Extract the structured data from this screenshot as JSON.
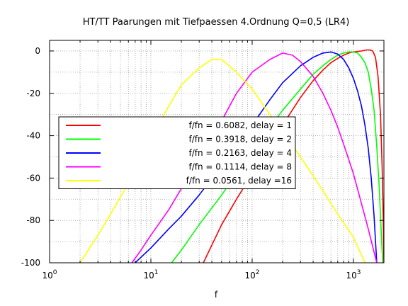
{
  "chart_data": {
    "type": "line",
    "title": "HT/TT Paarungen mit Tiefpaessen 4.Ordnung Q=0,5 (LR4)",
    "xlabel": "f",
    "ylabel": "",
    "x_scale": "log",
    "xlim": [
      1,
      2000
    ],
    "ylim": [
      -100,
      5
    ],
    "grid": true,
    "legend_position": "left-middle",
    "yticks": [
      {
        "value": 0,
        "label": "0"
      },
      {
        "value": -20,
        "label": "-20"
      },
      {
        "value": -40,
        "label": "-40"
      },
      {
        "value": -60,
        "label": "-60"
      },
      {
        "value": -80,
        "label": "-80"
      },
      {
        "value": -100,
        "label": "-100"
      }
    ],
    "xticks": [
      {
        "value": 1,
        "base": "10",
        "exp": "0"
      },
      {
        "value": 10,
        "base": "10",
        "exp": "1"
      },
      {
        "value": 100,
        "base": "10",
        "exp": "2"
      },
      {
        "value": 1000,
        "base": "10",
        "exp": "3"
      }
    ],
    "series": [
      {
        "name": "f/fn = 0.6082, delay = 1",
        "color": "#ff0000",
        "points": [
          [
            33,
            -100
          ],
          [
            50,
            -82
          ],
          [
            70,
            -70
          ],
          [
            100,
            -58
          ],
          [
            150,
            -44
          ],
          [
            200,
            -35
          ],
          [
            300,
            -22
          ],
          [
            400,
            -14
          ],
          [
            500,
            -9
          ],
          [
            600,
            -5.5
          ],
          [
            700,
            -3.5
          ],
          [
            800,
            -2
          ],
          [
            900,
            -1
          ],
          [
            1000,
            -0.5
          ],
          [
            1100,
            -0.2
          ],
          [
            1200,
            0
          ],
          [
            1350,
            0.5
          ],
          [
            1450,
            0.5
          ],
          [
            1550,
            0
          ],
          [
            1650,
            -3
          ],
          [
            1750,
            -12
          ],
          [
            1850,
            -30
          ],
          [
            1920,
            -55
          ],
          [
            1970,
            -80
          ],
          [
            2000,
            -100
          ]
        ]
      },
      {
        "name": "f/fn = 0.3918, delay = 2",
        "color": "#00ff00",
        "points": [
          [
            16,
            -100
          ],
          [
            20,
            -94
          ],
          [
            30,
            -82
          ],
          [
            50,
            -68
          ],
          [
            70,
            -58
          ],
          [
            100,
            -47
          ],
          [
            150,
            -36
          ],
          [
            200,
            -28
          ],
          [
            300,
            -18
          ],
          [
            400,
            -11
          ],
          [
            500,
            -7
          ],
          [
            600,
            -4
          ],
          [
            700,
            -2
          ],
          [
            800,
            -1
          ],
          [
            900,
            -0.5
          ],
          [
            1000,
            -0.5
          ],
          [
            1100,
            -1
          ],
          [
            1200,
            -3
          ],
          [
            1300,
            -5.5
          ],
          [
            1400,
            -10
          ],
          [
            1500,
            -18
          ],
          [
            1600,
            -28
          ],
          [
            1700,
            -45
          ],
          [
            1800,
            -65
          ],
          [
            1900,
            -90
          ],
          [
            1950,
            -100
          ]
        ]
      },
      {
        "name": "f/fn = 0.2163, delay = 4",
        "color": "#0000ff",
        "points": [
          [
            7,
            -100
          ],
          [
            10,
            -93
          ],
          [
            15,
            -84
          ],
          [
            20,
            -78
          ],
          [
            30,
            -68
          ],
          [
            50,
            -54
          ],
          [
            70,
            -45
          ],
          [
            100,
            -35
          ],
          [
            150,
            -23
          ],
          [
            200,
            -15
          ],
          [
            300,
            -7
          ],
          [
            400,
            -3
          ],
          [
            500,
            -1
          ],
          [
            600,
            -0.5
          ],
          [
            700,
            -1.5
          ],
          [
            800,
            -4
          ],
          [
            900,
            -8
          ],
          [
            1000,
            -13
          ],
          [
            1100,
            -19
          ],
          [
            1200,
            -26
          ],
          [
            1300,
            -35
          ],
          [
            1400,
            -46
          ],
          [
            1500,
            -60
          ],
          [
            1600,
            -78
          ],
          [
            1700,
            -100
          ]
        ]
      },
      {
        "name": "f/fn = 0.1114, delay = 8",
        "color": "#ff00ff",
        "points": [
          [
            6.5,
            -100
          ],
          [
            8,
            -94
          ],
          [
            10,
            -87
          ],
          [
            15,
            -75
          ],
          [
            20,
            -65
          ],
          [
            30,
            -50
          ],
          [
            50,
            -33
          ],
          [
            70,
            -20
          ],
          [
            100,
            -10
          ],
          [
            150,
            -4
          ],
          [
            200,
            -1
          ],
          [
            250,
            -2
          ],
          [
            300,
            -5
          ],
          [
            400,
            -12
          ],
          [
            500,
            -20
          ],
          [
            600,
            -28
          ],
          [
            700,
            -36
          ],
          [
            800,
            -44
          ],
          [
            1000,
            -58
          ],
          [
            1200,
            -72
          ],
          [
            1400,
            -84
          ],
          [
            1600,
            -95
          ],
          [
            1700,
            -100
          ]
        ]
      },
      {
        "name": "f/fn = 0.0561, delay =16",
        "color": "#ffff00",
        "points": [
          [
            2,
            -100
          ],
          [
            3,
            -87
          ],
          [
            4,
            -77
          ],
          [
            5,
            -69
          ],
          [
            7,
            -57
          ],
          [
            10,
            -42
          ],
          [
            15,
            -26
          ],
          [
            20,
            -16
          ],
          [
            30,
            -8
          ],
          [
            40,
            -4
          ],
          [
            50,
            -4
          ],
          [
            70,
            -10
          ],
          [
            100,
            -18
          ],
          [
            150,
            -30
          ],
          [
            200,
            -38
          ],
          [
            300,
            -50
          ],
          [
            400,
            -59
          ],
          [
            500,
            -66
          ],
          [
            700,
            -77
          ],
          [
            1000,
            -88
          ],
          [
            1300,
            -100
          ]
        ]
      }
    ]
  }
}
